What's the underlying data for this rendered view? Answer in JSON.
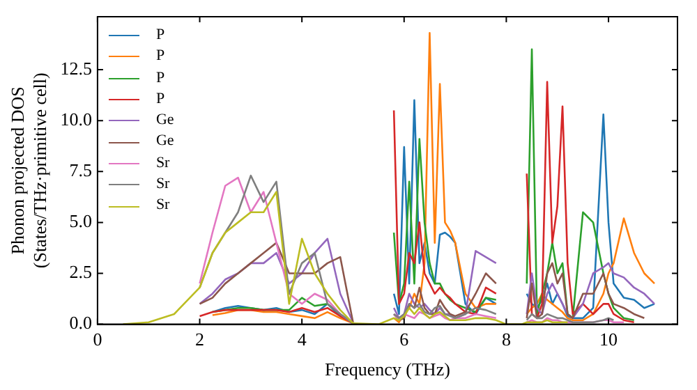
{
  "chart_data": {
    "type": "line",
    "xlabel": "Frequency (THz)",
    "ylabel": "Phonon projected DOS\n(States/THz·primitive cell)",
    "x": [
      0.5,
      1,
      1.5,
      2,
      2.25,
      2.5,
      2.75,
      3,
      3.25,
      3.5,
      3.75,
      4,
      4.25,
      4.5,
      4.75,
      5,
      5.5,
      5.8,
      5.9,
      6.0,
      6.1,
      6.2,
      6.3,
      6.4,
      6.5,
      6.6,
      6.7,
      6.8,
      6.9,
      7.0,
      7.2,
      7.4,
      7.6,
      7.8,
      8.0,
      8.3,
      8.4,
      8.5,
      8.6,
      8.7,
      8.8,
      8.9,
      9.0,
      9.1,
      9.2,
      9.3,
      9.5,
      9.7,
      9.9,
      10.0,
      10.1,
      10.3,
      10.5,
      10.7,
      10.9
    ],
    "series": [
      {
        "name": "P",
        "color": "#1f77b4",
        "values": [
          null,
          null,
          null,
          null,
          0.6,
          0.8,
          0.9,
          0.8,
          0.7,
          0.8,
          0.6,
          0.7,
          0.5,
          1.0,
          0.4,
          0.05,
          null,
          1.5,
          0.5,
          8.7,
          2.0,
          11.0,
          3.0,
          4.0,
          2.5,
          2.0,
          4.4,
          4.5,
          4.3,
          4.0,
          1.0,
          0.5,
          1.3,
          1.0,
          null,
          null,
          1.5,
          1.0,
          0.8,
          1.2,
          2.0,
          1.0,
          1.5,
          1.0,
          0.4,
          0.3,
          0.3,
          0.8,
          10.3,
          5.0,
          2.0,
          1.3,
          1.2,
          0.8,
          1.0
        ]
      },
      {
        "name": "P",
        "color": "#ff7f0e",
        "values": [
          null,
          null,
          null,
          null,
          0.45,
          0.55,
          0.7,
          0.7,
          0.6,
          0.6,
          0.5,
          0.4,
          0.3,
          0.6,
          0.3,
          0.05,
          null,
          0.3,
          0.1,
          0.5,
          0.8,
          1.5,
          1.0,
          3.0,
          14.3,
          4.0,
          11.8,
          5.0,
          4.6,
          4.0,
          1.5,
          0.8,
          1.0,
          1.0,
          null,
          null,
          0.5,
          0.8,
          1.0,
          1.5,
          1.2,
          1.0,
          0.8,
          0.6,
          0.3,
          0.2,
          0.2,
          0.5,
          1.5,
          2.5,
          3.0,
          5.2,
          3.5,
          2.5,
          2.0
        ]
      },
      {
        "name": "P",
        "color": "#2ca02c",
        "values": [
          null,
          null,
          null,
          null,
          0.6,
          0.7,
          0.8,
          0.8,
          0.7,
          0.7,
          0.7,
          1.3,
          0.9,
          1.0,
          0.5,
          0.05,
          null,
          4.5,
          1.0,
          2.0,
          7.0,
          2.0,
          9.1,
          5.0,
          3.0,
          2.0,
          2.0,
          1.5,
          1.2,
          1.0,
          0.8,
          0.6,
          1.3,
          1.2,
          null,
          null,
          2.0,
          13.5,
          0.5,
          1.5,
          2.5,
          4.0,
          2.5,
          3.0,
          0.5,
          0.3,
          5.5,
          5.0,
          2.5,
          1.5,
          0.8,
          0.3,
          0.2,
          null,
          null
        ]
      },
      {
        "name": "P",
        "color": "#d62728",
        "values": [
          null,
          null,
          null,
          0.4,
          0.6,
          0.7,
          0.7,
          0.7,
          0.7,
          0.7,
          0.6,
          0.8,
          0.6,
          0.8,
          0.4,
          0.05,
          null,
          10.5,
          1.0,
          1.5,
          3.5,
          3.0,
          5.0,
          2.5,
          2.0,
          1.5,
          1.8,
          1.5,
          1.3,
          1.0,
          0.6,
          0.5,
          1.8,
          1.5,
          null,
          null,
          7.4,
          0.5,
          0.3,
          1.0,
          11.9,
          4.0,
          5.8,
          10.7,
          3.0,
          0.5,
          1.0,
          0.5,
          1.0,
          1.0,
          0.5,
          0.2,
          0.1,
          null,
          null
        ]
      },
      {
        "name": "Ge",
        "color": "#9467bd",
        "values": [
          null,
          null,
          null,
          1.0,
          1.5,
          2.2,
          2.5,
          3.0,
          3.0,
          3.5,
          2.0,
          2.5,
          3.5,
          4.2,
          1.5,
          0.1,
          null,
          0.8,
          0.3,
          0.5,
          1.5,
          1.0,
          0.8,
          1.0,
          0.7,
          0.5,
          0.8,
          0.5,
          0.5,
          0.3,
          0.5,
          3.6,
          3.3,
          3.0,
          null,
          null,
          0.5,
          2.5,
          0.8,
          0.5,
          1.5,
          2.0,
          1.5,
          1.0,
          0.5,
          0.3,
          1.0,
          2.5,
          2.8,
          3.0,
          2.5,
          2.3,
          1.8,
          1.5,
          1.0
        ]
      },
      {
        "name": "Ge",
        "color": "#8c564b",
        "values": [
          null,
          null,
          null,
          1.0,
          1.3,
          2.0,
          2.5,
          3.0,
          3.5,
          4.0,
          2.5,
          2.5,
          2.5,
          3.0,
          3.3,
          0.1,
          null,
          0.5,
          0.2,
          0.3,
          1.0,
          0.8,
          1.8,
          0.8,
          0.5,
          0.5,
          1.2,
          0.8,
          0.5,
          0.4,
          0.6,
          1.5,
          2.5,
          2.0,
          null,
          null,
          0.3,
          2.0,
          0.3,
          0.5,
          2.5,
          3.0,
          2.0,
          2.5,
          0.5,
          0.3,
          1.5,
          1.5,
          2.5,
          1.5,
          1.0,
          0.8,
          0.5,
          0.3,
          null
        ]
      },
      {
        "name": "Sr",
        "color": "#e377c2",
        "values": [
          null,
          null,
          null,
          2.0,
          4.5,
          6.8,
          7.2,
          5.5,
          6.5,
          4.0,
          1.5,
          1.0,
          1.5,
          1.2,
          0.5,
          0.05,
          null,
          0.5,
          0.2,
          0.5,
          0.4,
          0.3,
          0.6,
          0.5,
          0.3,
          0.4,
          0.5,
          0.3,
          0.2,
          0.3,
          0.3,
          0.5,
          0.4,
          0.3,
          null,
          null,
          0.1,
          0.2,
          0.1,
          0.1,
          0.3,
          0.2,
          0.2,
          0.1,
          0.1,
          0.1,
          0.1,
          0.1,
          0.2,
          0.2,
          0.1,
          0.1,
          null,
          null,
          null
        ]
      },
      {
        "name": "Sr",
        "color": "#7f7f7f",
        "values": [
          null,
          null,
          null,
          1.8,
          3.5,
          4.5,
          5.5,
          7.3,
          6.0,
          7.0,
          1.5,
          3.0,
          3.5,
          1.0,
          0.5,
          0.05,
          null,
          0.5,
          0.3,
          0.5,
          1.0,
          0.8,
          1.0,
          0.6,
          0.5,
          0.8,
          0.9,
          0.5,
          0.4,
          0.3,
          0.5,
          0.8,
          0.7,
          0.5,
          null,
          null,
          0.2,
          0.5,
          0.3,
          0.3,
          0.5,
          0.4,
          0.3,
          0.3,
          0.2,
          0.1,
          0.1,
          0.1,
          0.2,
          0.3,
          0.2,
          null,
          null,
          null,
          null
        ]
      },
      {
        "name": "Sr",
        "color": "#bcbd22",
        "values": [
          0,
          0.1,
          0.5,
          1.8,
          3.5,
          4.5,
          5.0,
          5.5,
          5.5,
          6.5,
          1.0,
          4.2,
          2.5,
          1.5,
          0.7,
          0.05,
          0,
          0.3,
          0.2,
          0.4,
          0.8,
          0.5,
          0.8,
          0.5,
          0.3,
          0.5,
          0.6,
          0.4,
          0.2,
          0.2,
          0.2,
          0.3,
          0.3,
          0.2,
          0,
          0,
          0.1,
          0.1,
          0.1,
          0.1,
          0.2,
          0.1,
          0.1,
          0.1,
          0.1,
          null,
          null,
          null,
          null,
          null,
          null,
          null,
          null,
          null,
          null
        ]
      }
    ],
    "xlim": [
      0,
      11.35
    ],
    "xticks": [
      0,
      2,
      4,
      6,
      8,
      10
    ],
    "ylim": [
      0,
      15.1
    ],
    "yticks": [
      {
        "value": 0,
        "label": "0.0"
      },
      {
        "value": 2.5,
        "label": "2.5"
      },
      {
        "value": 5,
        "label": "5.0"
      },
      {
        "value": 7.5,
        "label": "7.5"
      },
      {
        "value": 10,
        "label": "10.0"
      },
      {
        "value": 12.5,
        "label": "12.5"
      }
    ],
    "legend": "top left",
    "marker": "none",
    "line_style": "solid"
  }
}
